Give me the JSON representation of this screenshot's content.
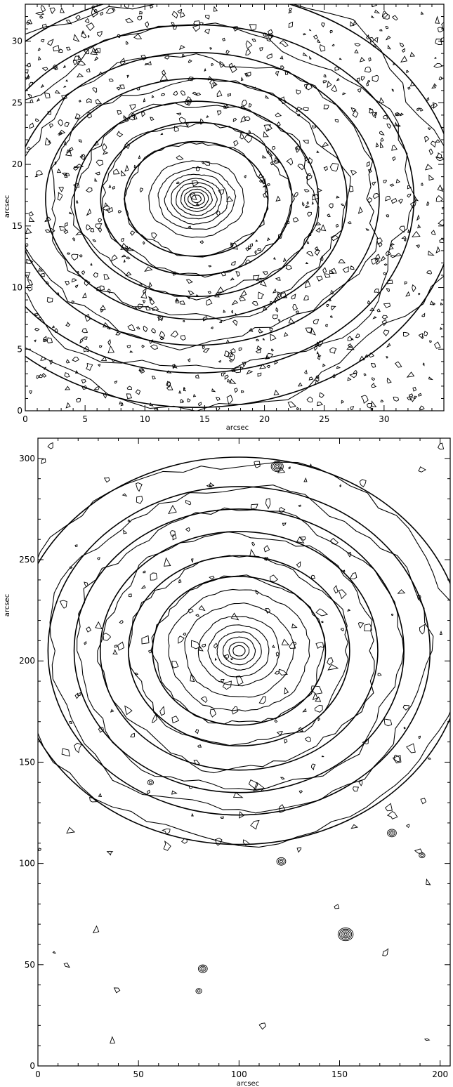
{
  "chart_data": [
    {
      "type": "contour",
      "xlabel": "arcsec",
      "ylabel": "arcsec",
      "xlim": [
        0,
        35
      ],
      "ylim": [
        0,
        33
      ],
      "x_ticks": [
        0,
        5,
        10,
        15,
        20,
        25,
        30
      ],
      "y_ticks": [
        0,
        5,
        10,
        15,
        20,
        25,
        30
      ],
      "center": [
        14.3,
        17.2
      ],
      "isophote_semi_major": [
        0.4,
        0.7,
        1.0,
        1.3,
        1.7,
        2.1,
        2.6,
        3.2,
        4.0
      ],
      "model_ellipse_semi_major": [
        6.0,
        8.0,
        10.2,
        12.6,
        15.3,
        18.2,
        21.8
      ],
      "axis_ratio": 0.8,
      "noise_density": "high",
      "background_sources": []
    },
    {
      "type": "contour",
      "xlabel": "arcsec",
      "ylabel": "arcsec",
      "xlim": [
        0,
        205
      ],
      "ylim": [
        0,
        310
      ],
      "x_ticks": [
        0,
        50,
        100,
        150,
        200
      ],
      "y_ticks": [
        0,
        50,
        100,
        150,
        200,
        250,
        300
      ],
      "center": [
        100,
        205
      ],
      "isophote_semi_major": [
        3,
        5,
        8,
        11,
        15,
        20,
        27,
        35
      ],
      "model_ellipse_semi_major": [
        43,
        55,
        69,
        82,
        95,
        112
      ],
      "axis_ratio": 0.86,
      "noise_density": "medium",
      "background_sources": [
        {
          "x": 119,
          "y": 296,
          "levels": 4
        },
        {
          "x": 176,
          "y": 115,
          "levels": 3
        },
        {
          "x": 191,
          "y": 104,
          "levels": 2
        },
        {
          "x": 121,
          "y": 101,
          "levels": 3
        },
        {
          "x": 153,
          "y": 65,
          "levels": 5
        },
        {
          "x": 82,
          "y": 48,
          "levels": 3
        },
        {
          "x": 80,
          "y": 37,
          "levels": 2
        },
        {
          "x": 56,
          "y": 140,
          "levels": 2
        }
      ]
    }
  ]
}
